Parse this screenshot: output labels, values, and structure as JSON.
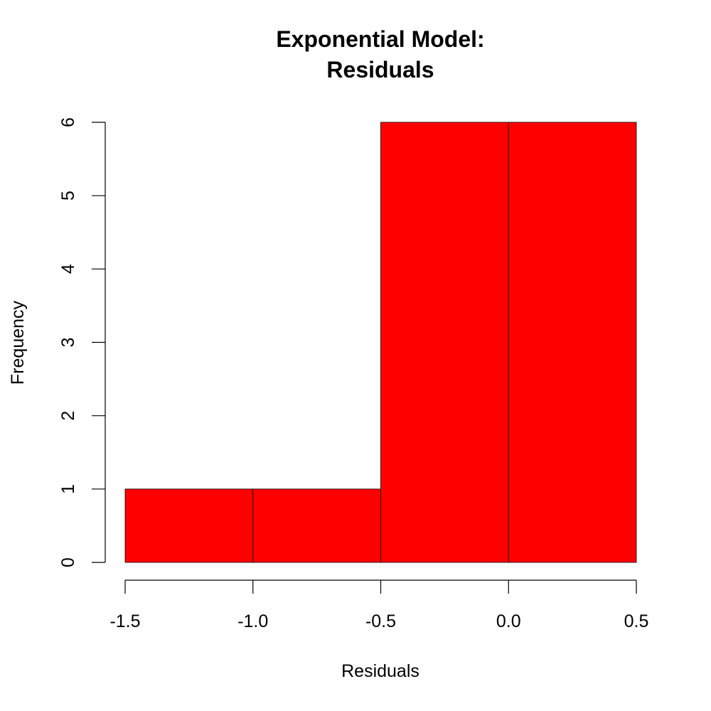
{
  "chart_data": {
    "type": "bar",
    "title_lines": [
      "Exponential Model:",
      "Residuals"
    ],
    "xlabel": "Residuals",
    "ylabel": "Frequency",
    "bin_edges": [
      -1.5,
      -1.0,
      -0.5,
      0.0,
      0.5
    ],
    "values": [
      1,
      1,
      6,
      6
    ],
    "xlim": [
      -1.5,
      0.5
    ],
    "ylim": [
      0,
      6
    ],
    "x_ticks": [
      -1.5,
      -1.0,
      -0.5,
      0.0,
      0.5
    ],
    "x_tick_labels": [
      "-1.5",
      "-1.0",
      "-0.5",
      "0.0",
      "0.5"
    ],
    "y_ticks": [
      0,
      1,
      2,
      3,
      4,
      5,
      6
    ],
    "y_tick_labels": [
      "0",
      "1",
      "2",
      "3",
      "4",
      "5",
      "6"
    ],
    "bar_color": "#ff0000",
    "grid": false,
    "legend": "none"
  }
}
